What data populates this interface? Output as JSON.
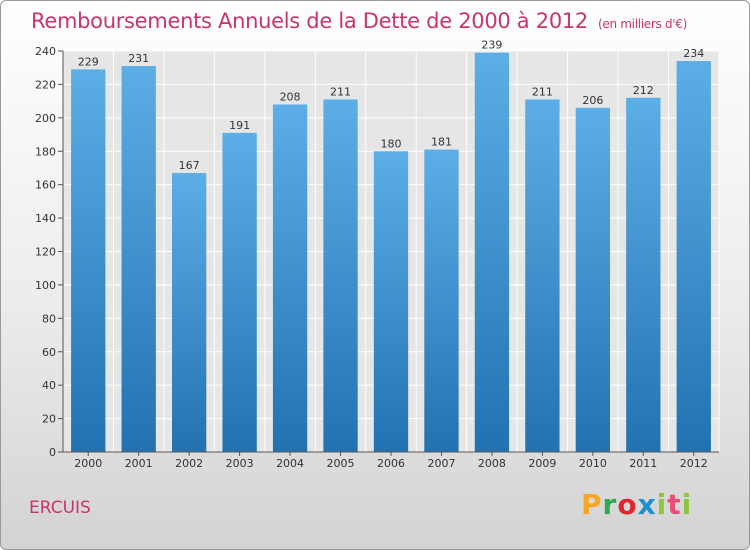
{
  "title": "Remboursements Annuels de la Dette de 2000 à 2012",
  "title_unit": "(en milliers d'€)",
  "commune": "ERCUIS",
  "logo_text": "Proxiti",
  "colors": {
    "bar_light": "#5aaee6",
    "bar_dark": "#2474b3",
    "title": "#c8346e"
  },
  "chart_data": {
    "type": "bar",
    "title": "Remboursements Annuels de la Dette de 2000 à 2012",
    "xlabel": "",
    "ylabel": "",
    "categories": [
      "2000",
      "2001",
      "2002",
      "2003",
      "2004",
      "2005",
      "2006",
      "2007",
      "2008",
      "2009",
      "2010",
      "2011",
      "2012"
    ],
    "values": [
      229,
      231,
      167,
      191,
      208,
      211,
      180,
      181,
      239,
      211,
      206,
      212,
      234
    ],
    "ylim": [
      0,
      240
    ],
    "yticks": [
      0,
      20,
      40,
      60,
      80,
      100,
      120,
      140,
      160,
      180,
      200,
      220,
      240
    ],
    "grid": true
  }
}
